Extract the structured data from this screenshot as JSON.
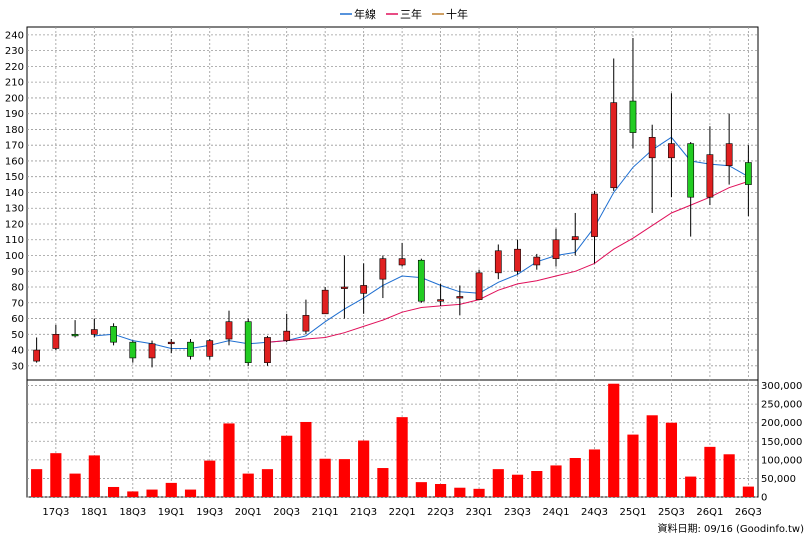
{
  "legend": [
    {
      "label": "年線",
      "color": "#1f6fd1"
    },
    {
      "label": "三年",
      "color": "#e0105a"
    },
    {
      "label": "十年",
      "color": "#c08030"
    }
  ],
  "footer": "資料日期: 09/16  (Goodinfo.tw)",
  "colors": {
    "up": "#e02020",
    "down": "#22cc22",
    "volume": "#ff0000",
    "grid": "#999999"
  },
  "chart_data": {
    "type": "candlestick",
    "x_tick_labels": [
      "17Q3",
      "18Q1",
      "18Q3",
      "19Q1",
      "19Q3",
      "20Q1",
      "20Q3",
      "21Q1",
      "21Q3",
      "22Q1",
      "22Q3",
      "23Q1",
      "23Q3",
      "24Q1",
      "24Q3",
      "25Q1",
      "25Q3",
      "26Q1",
      "26Q3"
    ],
    "price_axis": {
      "min": 30,
      "max": 240,
      "step": 10
    },
    "volume_axis": {
      "min": 0,
      "max": 300000,
      "step": 50000
    },
    "candles": [
      {
        "o": 33,
        "c": 40,
        "h": 48,
        "l": 32
      },
      {
        "o": 41,
        "c": 50,
        "h": 56,
        "l": 40
      },
      {
        "o": 50,
        "c": 49,
        "h": 59,
        "l": 48
      },
      {
        "o": 50,
        "c": 53,
        "h": 60,
        "l": 48
      },
      {
        "o": 55,
        "c": 45,
        "h": 57,
        "l": 43
      },
      {
        "o": 45,
        "c": 35,
        "h": 46,
        "l": 32
      },
      {
        "o": 35,
        "c": 44,
        "h": 46,
        "l": 29
      },
      {
        "o": 44,
        "c": 45,
        "h": 47,
        "l": 38
      },
      {
        "o": 45,
        "c": 36,
        "h": 47,
        "l": 34
      },
      {
        "o": 36,
        "c": 46,
        "h": 47,
        "l": 34
      },
      {
        "o": 47,
        "c": 58,
        "h": 65,
        "l": 43
      },
      {
        "o": 58,
        "c": 32,
        "h": 60,
        "l": 30
      },
      {
        "o": 32,
        "c": 48,
        "h": 49,
        "l": 30
      },
      {
        "o": 46,
        "c": 52,
        "h": 63,
        "l": 45
      },
      {
        "o": 52,
        "c": 62,
        "h": 72,
        "l": 50
      },
      {
        "o": 63,
        "c": 78,
        "h": 80,
        "l": 63
      },
      {
        "o": 79,
        "c": 80,
        "h": 100,
        "l": 60
      },
      {
        "o": 76,
        "c": 81,
        "h": 95,
        "l": 63
      },
      {
        "o": 85,
        "c": 98,
        "h": 100,
        "l": 73
      },
      {
        "o": 94,
        "c": 98,
        "h": 108,
        "l": 93
      },
      {
        "o": 97,
        "c": 71,
        "h": 98,
        "l": 70
      },
      {
        "o": 71,
        "c": 72,
        "h": 82,
        "l": 68
      },
      {
        "o": 73,
        "c": 74,
        "h": 81,
        "l": 62
      },
      {
        "o": 72,
        "c": 89,
        "h": 91,
        "l": 72
      },
      {
        "o": 89,
        "c": 103,
        "h": 107,
        "l": 85
      },
      {
        "o": 90,
        "c": 104,
        "h": 110,
        "l": 88
      },
      {
        "o": 94,
        "c": 99,
        "h": 101,
        "l": 91
      },
      {
        "o": 98,
        "c": 110,
        "h": 117,
        "l": 93
      },
      {
        "o": 110,
        "c": 112,
        "h": 127,
        "l": 100
      },
      {
        "o": 112,
        "c": 139,
        "h": 141,
        "l": 95
      },
      {
        "o": 143,
        "c": 197,
        "h": 225,
        "l": 141
      },
      {
        "o": 198,
        "c": 178,
        "h": 238,
        "l": 168
      },
      {
        "o": 162,
        "c": 175,
        "h": 183,
        "l": 127
      },
      {
        "o": 162,
        "c": 171,
        "h": 203,
        "l": 137
      },
      {
        "o": 171,
        "c": 137,
        "h": 172,
        "l": 112
      },
      {
        "o": 137,
        "c": 164,
        "h": 182,
        "l": 132
      },
      {
        "o": 157,
        "c": 171,
        "h": 190,
        "l": 145
      },
      {
        "o": 159,
        "c": 145,
        "h": 170,
        "l": 125
      }
    ],
    "volume": [
      75000,
      118000,
      63000,
      112000,
      27000,
      15000,
      20000,
      38000,
      20000,
      98000,
      198000,
      63000,
      75000,
      165000,
      202000,
      103000,
      102000,
      152000,
      78000,
      215000,
      40000,
      35000,
      25000,
      22000,
      75000,
      60000,
      70000,
      85000,
      105000,
      128000,
      305000,
      168000,
      220000,
      200000,
      55000,
      135000,
      115000,
      28000
    ],
    "series": [
      {
        "name": "年線",
        "values": [
          null,
          null,
          null,
          49,
          50,
          46,
          44,
          41,
          41,
          43,
          46,
          44,
          45,
          46,
          49,
          58,
          66,
          73,
          81,
          87,
          86,
          81,
          77,
          76,
          83,
          88,
          96,
          100,
          102,
          118,
          140,
          156,
          167,
          175,
          160,
          158,
          157,
          150
        ]
      },
      {
        "name": "三年",
        "values": [
          null,
          null,
          null,
          null,
          null,
          null,
          null,
          null,
          null,
          null,
          null,
          null,
          45,
          46,
          47,
          48,
          51,
          55,
          59,
          64,
          67,
          68,
          69,
          72,
          78,
          82,
          84,
          87,
          90,
          95,
          104,
          111,
          119,
          127,
          132,
          137,
          143,
          147
        ]
      }
    ]
  }
}
